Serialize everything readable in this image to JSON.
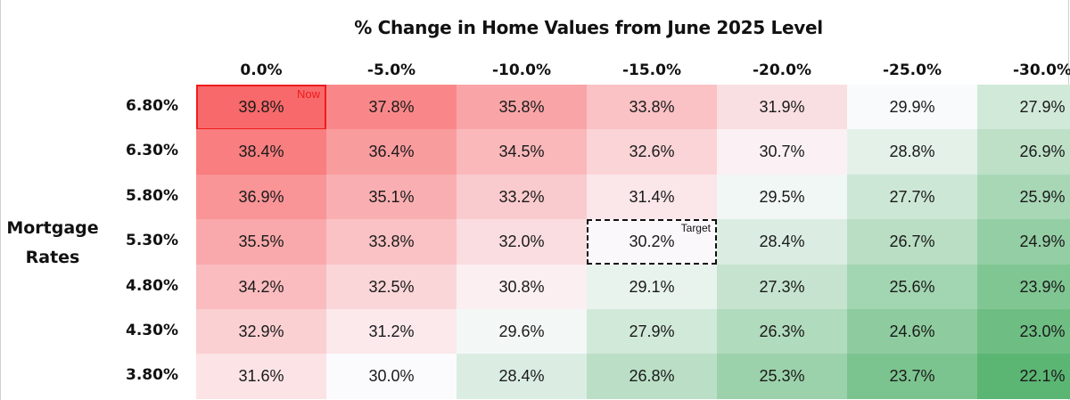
{
  "chart_data": {
    "type": "heatmap",
    "title": "% Change in Home Values from June 2025 Level",
    "ylabel": "Mortgage Rates",
    "x": [
      "0.0%",
      "-5.0%",
      "-10.0%",
      "-15.0%",
      "-20.0%",
      "-25.0%",
      "-30.0%"
    ],
    "y": [
      "6.80%",
      "6.30%",
      "5.80%",
      "5.30%",
      "4.80%",
      "4.30%",
      "3.80%"
    ],
    "values": [
      [
        "39.8%",
        "37.8%",
        "35.8%",
        "33.8%",
        "31.9%",
        "29.9%",
        "27.9%"
      ],
      [
        "38.4%",
        "36.4%",
        "34.5%",
        "32.6%",
        "30.7%",
        "28.8%",
        "26.9%"
      ],
      [
        "36.9%",
        "35.1%",
        "33.2%",
        "31.4%",
        "29.5%",
        "27.7%",
        "25.9%"
      ],
      [
        "35.5%",
        "33.8%",
        "32.0%",
        "30.2%",
        "28.4%",
        "26.7%",
        "24.9%"
      ],
      [
        "34.2%",
        "32.5%",
        "30.8%",
        "29.1%",
        "27.3%",
        "25.6%",
        "23.9%"
      ],
      [
        "32.9%",
        "31.2%",
        "29.6%",
        "27.9%",
        "26.3%",
        "24.6%",
        "23.0%"
      ],
      [
        "31.6%",
        "30.0%",
        "28.4%",
        "26.8%",
        "25.3%",
        "23.7%",
        "22.1%"
      ]
    ],
    "color_scale": {
      "low": "#5cb673",
      "mid": "#fbfbfe",
      "high": "#f8696b",
      "mid_value": 30.0
    },
    "annotations": [
      {
        "text": "Now",
        "row": 0,
        "col": 0,
        "style": "solid",
        "color": "#ee1c1c"
      },
      {
        "text": "Target",
        "row": 3,
        "col": 3,
        "style": "dashed",
        "color": "#111111"
      }
    ]
  }
}
